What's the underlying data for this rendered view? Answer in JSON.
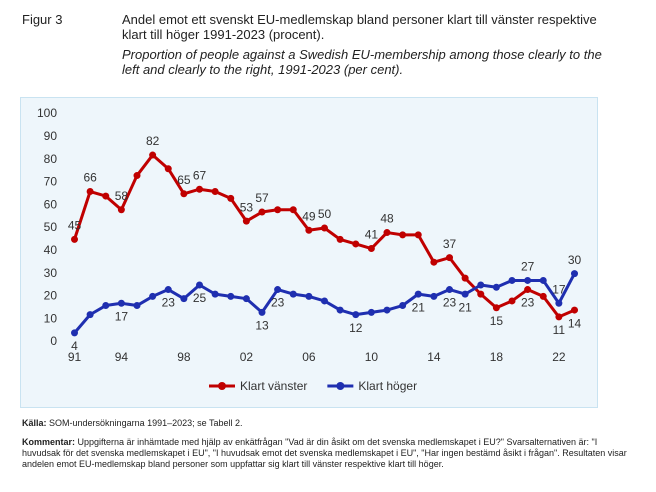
{
  "header": {
    "figure": "Figur 3"
  },
  "chart_data": {
    "type": "line",
    "title": "Andel emot ett svenskt EU-medlemskap bland personer klart till vänster respektive klart till höger 1991-2023 (procent).",
    "subtitle": "Proportion of people against a Swedish EU-membership among those clearly to the left and clearly to the right, 1991-2023 (per cent).",
    "x": [
      1991,
      1992,
      1993,
      1994,
      1995,
      1996,
      1997,
      1998,
      1999,
      2000,
      2001,
      2002,
      2003,
      2004,
      2005,
      2006,
      2007,
      2008,
      2009,
      2010,
      2011,
      2012,
      2013,
      2014,
      2015,
      2016,
      2017,
      2018,
      2019,
      2020,
      2021,
      2022,
      2023
    ],
    "series": [
      {
        "name": "Klart vänster",
        "color": "#c00000",
        "values": [
          45,
          66,
          64,
          58,
          73,
          82,
          76,
          65,
          67,
          66,
          63,
          53,
          57,
          58,
          58,
          49,
          50,
          45,
          43,
          41,
          48,
          47,
          47,
          35,
          37,
          28,
          21,
          15,
          18,
          23,
          20,
          11,
          14
        ],
        "labeled": [
          0,
          1,
          3,
          5,
          7,
          8,
          11,
          12,
          15,
          16,
          19,
          20,
          24,
          27,
          29,
          31,
          32
        ]
      },
      {
        "name": "Klart höger",
        "color": "#1f2fb0",
        "values": [
          4,
          12,
          16,
          17,
          16,
          20,
          23,
          19,
          25,
          21,
          20,
          19,
          13,
          23,
          21,
          20,
          18,
          14,
          12,
          13,
          14,
          16,
          21,
          20,
          23,
          21,
          25,
          24,
          27,
          27,
          27,
          17,
          30
        ],
        "labeled": [
          0,
          3,
          6,
          8,
          12,
          13,
          18,
          22,
          24,
          25,
          29,
          31,
          32
        ]
      }
    ],
    "xlim": [
      1990.2,
      2023.8
    ],
    "xticks": [
      {
        "value": 1991,
        "label": "91"
      },
      {
        "value": 1994,
        "label": "94"
      },
      {
        "value": 1998,
        "label": "98"
      },
      {
        "value": 2002,
        "label": "02"
      },
      {
        "value": 2006,
        "label": "06"
      },
      {
        "value": 2010,
        "label": "10"
      },
      {
        "value": 2014,
        "label": "14"
      },
      {
        "value": 2018,
        "label": "18"
      },
      {
        "value": 2022,
        "label": "22"
      }
    ],
    "ylim": [
      0,
      100
    ],
    "yticks": [
      0,
      10,
      20,
      30,
      40,
      50,
      60,
      70,
      80,
      90,
      100
    ],
    "grid": false,
    "legend": "bottom"
  },
  "footer": {
    "source_label": "Källa:",
    "source": "SOM-undersökningarna 1991–2023; se Tabell 2.",
    "comment_label": "Kommentar:",
    "comment": "Uppgifterna är inhämtade med hjälp av enkätfrågan \"Vad är din åsikt om det svenska medlemskapet i EU?\" Svarsalternativen är: \"I huvudsak för det svenska medlemskapet i EU\", \"I huvudsak emot det svenska medlemskapet i EU\", \"Har ingen bestämd åsikt i frågan\". Resultaten visar andelen emot EU-medlemskap bland personer som uppfattar sig klart till vänster respektive klart till höger."
  }
}
